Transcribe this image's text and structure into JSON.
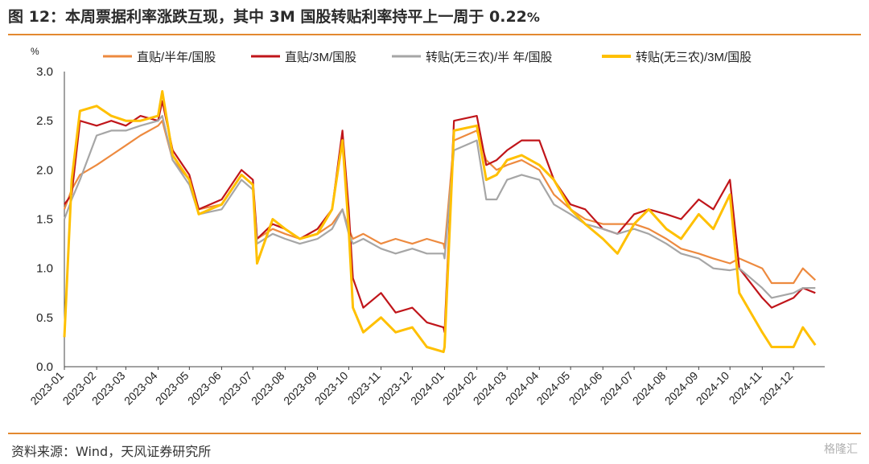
{
  "header": {
    "title": "图 12：本周票据利率涨跌互现，其中 3M 国股转贴利率持平上一周于 0.22",
    "title_unit": "%"
  },
  "footer": {
    "source": "资料来源：Wind，天风证券研究所",
    "watermark": "格隆汇"
  },
  "colors": {
    "accent": "#e3892f",
    "s1": "#ed8a3f",
    "s2": "#c0151a",
    "s3": "#a6a6a6",
    "s4": "#ffc000"
  },
  "chart_data": {
    "type": "line",
    "ylabel": "%",
    "ylim": [
      0.0,
      3.0
    ],
    "yticks": [
      "0.0",
      "0.5",
      "1.0",
      "1.5",
      "2.0",
      "2.5",
      "3.0"
    ],
    "xlim": [
      "2023-01-01",
      "2024-12-31"
    ],
    "xticks": [
      "2023-01",
      "2023-02",
      "2023-03",
      "2023-04",
      "2023-05",
      "2023-06",
      "2023-07",
      "2023-08",
      "2023-09",
      "2023-10",
      "2023-11",
      "2023-12",
      "2024-01",
      "2024-02",
      "2024-03",
      "2024-04",
      "2024-05",
      "2024-06",
      "2024-07",
      "2024-08",
      "2024-09",
      "2024-10",
      "2024-11",
      "2024-12"
    ],
    "legend_position": "top",
    "series": [
      {
        "name": "直贴/半年/国股",
        "color": "#ed8a3f",
        "x": [
          "2023-01-01",
          "2023-01-08",
          "2023-01-16",
          "2023-02-01",
          "2023-02-15",
          "2023-03-01",
          "2023-03-15",
          "2023-04-01",
          "2023-04-05",
          "2023-04-15",
          "2023-05-01",
          "2023-05-10",
          "2023-06-01",
          "2023-06-20",
          "2023-07-01",
          "2023-07-05",
          "2023-07-20",
          "2023-08-01",
          "2023-08-15",
          "2023-09-01",
          "2023-09-15",
          "2023-09-25",
          "2023-10-01",
          "2023-10-05",
          "2023-10-15",
          "2023-11-01",
          "2023-11-15",
          "2023-12-01",
          "2023-12-15",
          "2023-12-31",
          "2024-01-01",
          "2024-01-10",
          "2024-02-01",
          "2024-02-10",
          "2024-02-20",
          "2024-03-01",
          "2024-03-15",
          "2024-04-01",
          "2024-04-15",
          "2024-05-01",
          "2024-05-15",
          "2024-06-01",
          "2024-06-15",
          "2024-07-01",
          "2024-07-15",
          "2024-08-01",
          "2024-08-15",
          "2024-09-01",
          "2024-09-15",
          "2024-10-01",
          "2024-10-10",
          "2024-11-01",
          "2024-11-10",
          "2024-12-01",
          "2024-12-10",
          "2024-12-22"
        ],
        "y": [
          1.6,
          1.8,
          1.95,
          2.05,
          2.15,
          2.25,
          2.35,
          2.45,
          2.5,
          2.1,
          1.9,
          1.6,
          1.65,
          1.95,
          1.85,
          1.3,
          1.4,
          1.35,
          1.3,
          1.35,
          1.45,
          1.6,
          1.4,
          1.3,
          1.35,
          1.25,
          1.3,
          1.25,
          1.3,
          1.25,
          1.2,
          2.3,
          2.4,
          2.1,
          2.0,
          2.05,
          2.1,
          2.0,
          1.75,
          1.6,
          1.5,
          1.45,
          1.45,
          1.45,
          1.4,
          1.3,
          1.2,
          1.15,
          1.1,
          1.05,
          1.1,
          1.0,
          0.85,
          0.85,
          1.0,
          0.88
        ]
      },
      {
        "name": "直贴/3M/国股",
        "color": "#c0151a",
        "x": [
          "2023-01-01",
          "2023-01-08",
          "2023-01-16",
          "2023-02-01",
          "2023-02-15",
          "2023-03-01",
          "2023-03-15",
          "2023-04-01",
          "2023-04-05",
          "2023-04-15",
          "2023-05-01",
          "2023-05-10",
          "2023-06-01",
          "2023-06-20",
          "2023-07-01",
          "2023-07-05",
          "2023-07-20",
          "2023-08-01",
          "2023-08-15",
          "2023-09-01",
          "2023-09-15",
          "2023-09-25",
          "2023-10-01",
          "2023-10-05",
          "2023-10-15",
          "2023-11-01",
          "2023-11-15",
          "2023-12-01",
          "2023-12-15",
          "2023-12-31",
          "2024-01-01",
          "2024-01-10",
          "2024-02-01",
          "2024-02-10",
          "2024-02-20",
          "2024-03-01",
          "2024-03-15",
          "2024-04-01",
          "2024-04-15",
          "2024-05-01",
          "2024-05-15",
          "2024-06-01",
          "2024-06-15",
          "2024-07-01",
          "2024-07-15",
          "2024-08-01",
          "2024-08-15",
          "2024-09-01",
          "2024-09-15",
          "2024-10-01",
          "2024-10-10",
          "2024-11-01",
          "2024-11-10",
          "2024-12-01",
          "2024-12-10",
          "2024-12-22"
        ],
        "y": [
          1.65,
          1.75,
          2.5,
          2.45,
          2.5,
          2.45,
          2.55,
          2.5,
          2.7,
          2.2,
          1.95,
          1.6,
          1.7,
          2.0,
          1.9,
          1.3,
          1.45,
          1.4,
          1.3,
          1.4,
          1.6,
          2.4,
          1.6,
          0.9,
          0.6,
          0.75,
          0.55,
          0.6,
          0.45,
          0.4,
          0.35,
          2.5,
          2.55,
          2.05,
          2.1,
          2.2,
          2.3,
          2.3,
          1.9,
          1.65,
          1.6,
          1.4,
          1.35,
          1.55,
          1.6,
          1.55,
          1.5,
          1.7,
          1.6,
          1.9,
          1.0,
          0.7,
          0.6,
          0.7,
          0.8,
          0.75
        ]
      },
      {
        "name": "转贴(无三农)/半 年/国股",
        "color": "#a6a6a6",
        "x": [
          "2023-01-01",
          "2023-01-08",
          "2023-01-16",
          "2023-02-01",
          "2023-02-15",
          "2023-03-01",
          "2023-03-15",
          "2023-04-01",
          "2023-04-05",
          "2023-04-15",
          "2023-05-01",
          "2023-05-10",
          "2023-06-01",
          "2023-06-20",
          "2023-07-01",
          "2023-07-05",
          "2023-07-20",
          "2023-08-01",
          "2023-08-15",
          "2023-09-01",
          "2023-09-15",
          "2023-09-25",
          "2023-10-01",
          "2023-10-05",
          "2023-10-15",
          "2023-11-01",
          "2023-11-15",
          "2023-12-01",
          "2023-12-15",
          "2023-12-31",
          "2024-01-01",
          "2024-01-10",
          "2024-02-01",
          "2024-02-10",
          "2024-02-20",
          "2024-03-01",
          "2024-03-15",
          "2024-04-01",
          "2024-04-15",
          "2024-05-01",
          "2024-05-15",
          "2024-06-01",
          "2024-06-15",
          "2024-07-01",
          "2024-07-15",
          "2024-08-01",
          "2024-08-15",
          "2024-09-01",
          "2024-09-15",
          "2024-10-01",
          "2024-10-10",
          "2024-11-01",
          "2024-11-10",
          "2024-12-01",
          "2024-12-10",
          "2024-12-22"
        ],
        "y": [
          1.5,
          1.7,
          1.9,
          2.35,
          2.4,
          2.4,
          2.45,
          2.5,
          2.55,
          2.1,
          1.85,
          1.55,
          1.6,
          1.9,
          1.8,
          1.25,
          1.35,
          1.3,
          1.25,
          1.3,
          1.4,
          1.6,
          1.35,
          1.25,
          1.3,
          1.2,
          1.15,
          1.2,
          1.15,
          1.15,
          1.1,
          2.2,
          2.3,
          1.7,
          1.7,
          1.9,
          1.95,
          1.9,
          1.65,
          1.55,
          1.45,
          1.4,
          1.35,
          1.4,
          1.35,
          1.25,
          1.15,
          1.1,
          1.0,
          0.98,
          1.0,
          0.8,
          0.7,
          0.75,
          0.8,
          0.8
        ]
      },
      {
        "name": "转贴(无三农)/3M/国股",
        "color": "#ffc000",
        "x": [
          "2023-01-01",
          "2023-01-08",
          "2023-01-16",
          "2023-02-01",
          "2023-02-15",
          "2023-03-01",
          "2023-03-15",
          "2023-04-01",
          "2023-04-05",
          "2023-04-15",
          "2023-05-01",
          "2023-05-10",
          "2023-06-01",
          "2023-06-20",
          "2023-07-01",
          "2023-07-05",
          "2023-07-20",
          "2023-08-01",
          "2023-08-15",
          "2023-09-01",
          "2023-09-15",
          "2023-09-25",
          "2023-10-01",
          "2023-10-05",
          "2023-10-15",
          "2023-11-01",
          "2023-11-15",
          "2023-12-01",
          "2023-12-15",
          "2023-12-31",
          "2024-01-01",
          "2024-01-10",
          "2024-02-01",
          "2024-02-10",
          "2024-02-20",
          "2024-03-01",
          "2024-03-15",
          "2024-04-01",
          "2024-04-15",
          "2024-05-01",
          "2024-05-15",
          "2024-06-01",
          "2024-06-15",
          "2024-07-01",
          "2024-07-15",
          "2024-08-01",
          "2024-08-15",
          "2024-09-01",
          "2024-09-15",
          "2024-10-01",
          "2024-10-10",
          "2024-11-01",
          "2024-11-10",
          "2024-12-01",
          "2024-12-10",
          "2024-12-22"
        ],
        "y": [
          0.3,
          1.9,
          2.6,
          2.65,
          2.55,
          2.5,
          2.5,
          2.55,
          2.8,
          2.15,
          1.9,
          1.55,
          1.65,
          1.95,
          1.85,
          1.05,
          1.5,
          1.4,
          1.3,
          1.35,
          1.6,
          2.3,
          1.4,
          0.6,
          0.35,
          0.5,
          0.35,
          0.4,
          0.2,
          0.15,
          0.2,
          2.4,
          2.45,
          1.9,
          1.95,
          2.1,
          2.15,
          2.05,
          1.9,
          1.6,
          1.45,
          1.3,
          1.15,
          1.45,
          1.6,
          1.4,
          1.3,
          1.55,
          1.4,
          1.75,
          0.75,
          0.35,
          0.2,
          0.2,
          0.4,
          0.22
        ]
      }
    ]
  }
}
